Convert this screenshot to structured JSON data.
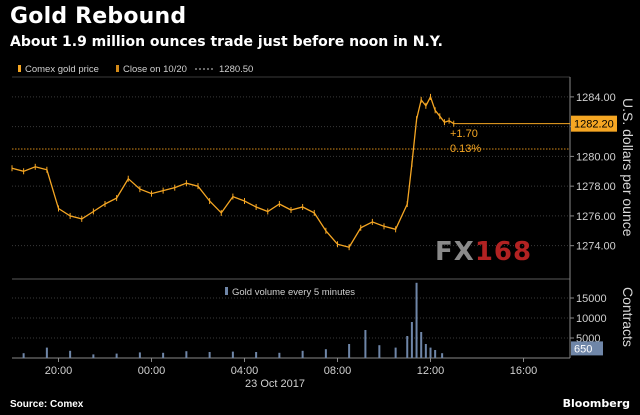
{
  "header": {
    "title": "Gold Rebound",
    "subtitle": "About 1.9 million ounces trade just before noon in N.Y."
  },
  "legend": {
    "series1": "Comex gold price",
    "series2": "Close on 10/20",
    "series2_value": "1280.50",
    "volume_label": "Gold volume every 5 minutes"
  },
  "annotations": {
    "change": "+1.70",
    "change_pct": "0.13%",
    "last_price": "1282.20",
    "last_volume": "650"
  },
  "footer": {
    "source": "Source: Comex",
    "brand": "Bloomberg"
  },
  "watermark": {
    "left": "FX",
    "right": "168"
  },
  "colors": {
    "price": "#f5a623",
    "close_line": "#d48a18",
    "volume": "#6f86a8",
    "grid": "#3a3a3a",
    "background": "#000000"
  },
  "chart_data": [
    {
      "type": "line",
      "title": "Gold Rebound",
      "ylabel": "U.S. dollars per ounce",
      "x_ticks": [
        "20:00",
        "00:00",
        "04:00",
        "08:00",
        "12:00",
        "16:00"
      ],
      "date_label": "23 Oct 2017",
      "ylim": [
        1272.5,
        1285
      ],
      "y_ticks": [
        1274,
        1276,
        1278,
        1280,
        1282,
        1284
      ],
      "grid": "dotted-horizontal",
      "series": [
        {
          "name": "Comex gold price",
          "hours_since_1800": [
            0,
            0.5,
            1,
            1.5,
            2,
            2.5,
            3,
            3.5,
            4,
            4.5,
            5,
            5.5,
            6,
            6.5,
            7,
            7.5,
            8,
            8.5,
            9,
            9.5,
            10,
            10.5,
            11,
            11.5,
            12,
            12.5,
            13,
            13.5,
            14,
            14.5,
            15,
            15.5,
            16,
            16.5,
            17,
            17.2,
            17.4,
            17.6,
            17.8,
            18,
            18.2,
            18.4,
            18.6,
            18.8,
            19
          ],
          "values": [
            1279.2,
            1279.0,
            1279.3,
            1279.1,
            1276.5,
            1276.0,
            1275.8,
            1276.3,
            1276.8,
            1277.2,
            1278.5,
            1277.8,
            1277.5,
            1277.7,
            1277.9,
            1278.2,
            1278.0,
            1277.0,
            1276.2,
            1277.3,
            1277.0,
            1276.6,
            1276.3,
            1276.8,
            1276.4,
            1276.6,
            1276.2,
            1275.0,
            1274.1,
            1273.9,
            1275.2,
            1275.6,
            1275.3,
            1275.1,
            1276.8,
            1279.5,
            1282.5,
            1283.8,
            1283.4,
            1284.0,
            1283.1,
            1282.7,
            1282.3,
            1282.4,
            1282.2
          ]
        }
      ],
      "reference_line": {
        "name": "Close on 10/20",
        "value": 1280.5
      }
    },
    {
      "type": "bar",
      "title": "Gold volume every 5 minutes",
      "ylabel": "Contracts",
      "ylim": [
        0,
        19000
      ],
      "y_ticks": [
        5000,
        10000,
        15000
      ],
      "series": [
        {
          "name": "Gold volume every 5 minutes",
          "hours_since_1800": [
            0.5,
            1.5,
            2.5,
            3.5,
            4.5,
            5.5,
            6.5,
            7.5,
            8.5,
            9.5,
            10.5,
            11.5,
            12.5,
            13.5,
            14.5,
            15.2,
            15.8,
            16.5,
            17.0,
            17.2,
            17.4,
            17.6,
            17.8,
            18.0,
            18.2,
            18.5
          ],
          "values": [
            1200,
            2600,
            1800,
            900,
            1100,
            1400,
            1300,
            1700,
            1500,
            1600,
            1500,
            1300,
            1800,
            2200,
            3500,
            7000,
            3200,
            2600,
            5500,
            9000,
            18800,
            6500,
            3500,
            2600,
            2000,
            1200
          ]
        }
      ]
    }
  ]
}
